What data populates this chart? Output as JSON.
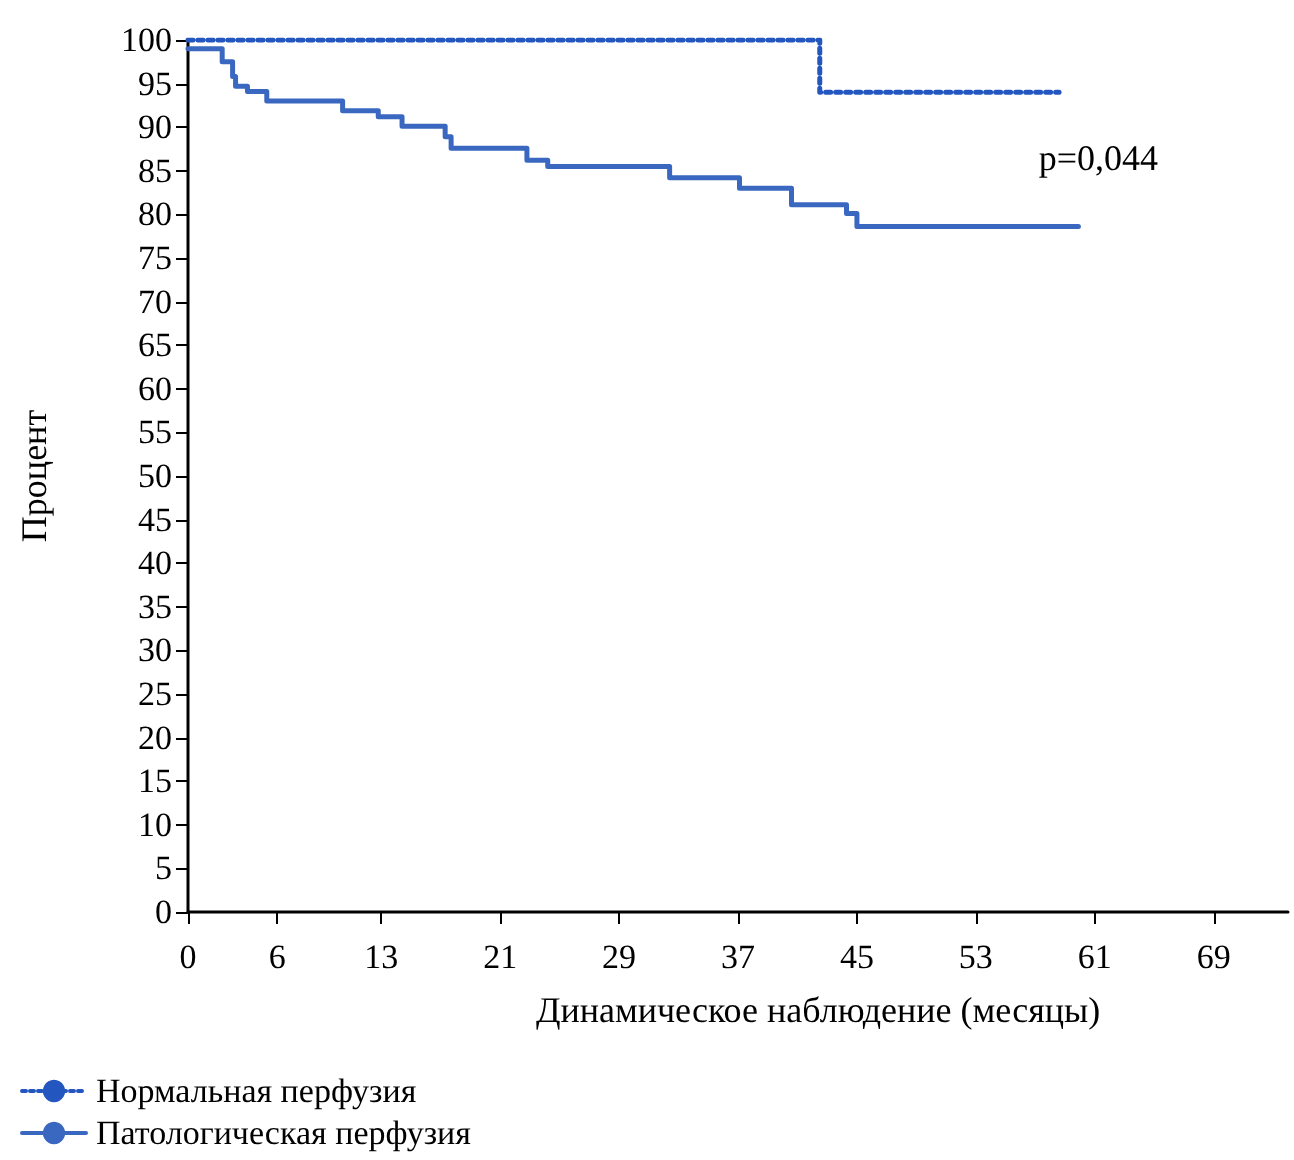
{
  "chart_data": {
    "type": "step",
    "xlabel": "Динамическое наблюдение (месяцы)",
    "ylabel": "Процент",
    "xlim": [
      0,
      74
    ],
    "xticks": [
      0,
      6,
      13,
      21,
      29,
      37,
      45,
      53,
      61,
      69
    ],
    "ylim": [
      0,
      100
    ],
    "yticks": [
      0,
      5,
      10,
      15,
      20,
      25,
      30,
      35,
      40,
      45,
      50,
      55,
      60,
      65,
      70,
      75,
      80,
      85,
      90,
      95,
      100
    ],
    "grid": false,
    "legend": "bottom left",
    "marker": "none",
    "annotations": [
      "p=0,044"
    ],
    "series": [
      {
        "name": "Нормальная перфузия",
        "color": "#2456c0",
        "line_style": "dotted",
        "x": [
          0,
          42.5,
          58.6
        ],
        "values": [
          100,
          94,
          94
        ]
      },
      {
        "name": "Патологическая перфузия",
        "color": "#3a68c0",
        "line_style": "solid",
        "x": [
          0,
          2.3,
          3.0,
          3.2,
          4.0,
          5.3,
          10.4,
          12.8,
          14.4,
          17.3,
          17.7,
          22.8,
          24.2,
          32.4,
          37.1,
          40.6,
          44.3,
          45.0,
          59.9
        ],
        "values": [
          99,
          97.5,
          95.8,
          94.7,
          94.1,
          93.0,
          91.9,
          91.2,
          90.1,
          88.9,
          87.6,
          86.2,
          85.5,
          84.2,
          83.0,
          81.1,
          80.1,
          78.6,
          78.6
        ]
      }
    ]
  }
}
